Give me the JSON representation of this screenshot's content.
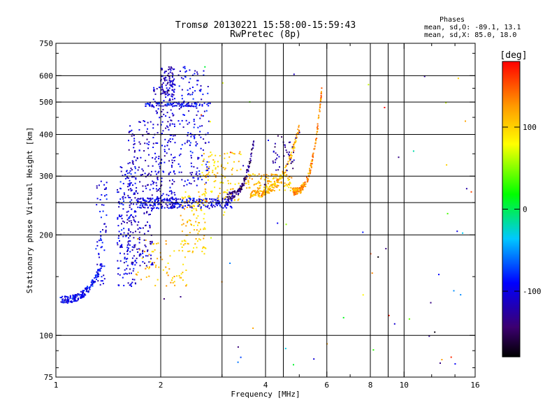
{
  "header": {
    "title": "Tromsø 20130221 15:58:00-15:59:43",
    "subtitle": "RwPretec (8p)",
    "phase_heading": "Phases",
    "phase_o": "mean, sd,O: -89.1, 13.1",
    "phase_x": "mean, sd,X:  85.0, 18.0"
  },
  "chart_data": {
    "type": "scatter",
    "xlabel": "Frequency [MHz]",
    "ylabel": "Stationary phase Virtual Height [km]",
    "x_scale": "log",
    "y_scale": "log",
    "xlim": [
      1,
      16
    ],
    "ylim": [
      75,
      750
    ],
    "x_ticks": [
      1,
      2,
      4,
      6,
      8,
      10,
      16
    ],
    "x_tick_labels": [
      "1",
      "2",
      "4",
      "6",
      "8",
      "10",
      "16"
    ],
    "x_grid": [
      2,
      3,
      4,
      4.5,
      6,
      8,
      9,
      10
    ],
    "y_ticks": [
      75,
      100,
      200,
      300,
      400,
      500,
      600,
      750
    ],
    "y_tick_labels": [
      "75",
      "100",
      "200",
      "300",
      "400",
      "500",
      "600",
      "750"
    ],
    "y_grid": [
      100,
      200,
      250,
      300,
      400,
      500,
      600
    ],
    "grid": true,
    "colorbar": {
      "label": "[deg]",
      "range": [
        -180,
        180
      ],
      "ticks": [
        100,
        0,
        -100
      ],
      "tick_labels": [
        "100",
        "0",
        "-100"
      ]
    },
    "traces": [
      {
        "fmin": 1.03,
        "fmax": 1.35,
        "hmin": 128,
        "hmax": 162,
        "hshape": "rise",
        "phase": -95,
        "count": 180
      },
      {
        "fmin": 1.3,
        "fmax": 1.4,
        "hmin": 140,
        "hmax": 290,
        "hshape": "rand",
        "phase": -100,
        "count": 60
      },
      {
        "fmin": 1.5,
        "fmax": 1.7,
        "hmin": 140,
        "hmax": 320,
        "hshape": "rand",
        "phase": -100,
        "count": 160
      },
      {
        "fmin": 1.6,
        "fmax": 1.9,
        "hmin": 160,
        "hmax": 440,
        "hshape": "rand",
        "phase": -110,
        "count": 220
      },
      {
        "fmin": 1.9,
        "fmax": 2.2,
        "hmin": 240,
        "hmax": 560,
        "hshape": "rand",
        "phase": -110,
        "count": 200
      },
      {
        "fmin": 2.0,
        "fmax": 2.2,
        "hmin": 520,
        "hmax": 640,
        "hshape": "rand",
        "phase": -115,
        "count": 90
      },
      {
        "fmin": 2.25,
        "fmax": 2.75,
        "hmin": 280,
        "hmax": 640,
        "hshape": "rand",
        "phase": -100,
        "count": 170
      },
      {
        "fmin": 1.7,
        "fmax": 3.2,
        "hmin": 240,
        "hmax": 258,
        "hshape": "flat",
        "phase": -100,
        "count": 260
      },
      {
        "fmin": 1.8,
        "fmax": 2.8,
        "hmin": 485,
        "hmax": 500,
        "hshape": "flat",
        "phase": -95,
        "count": 90
      },
      {
        "fmin": 2.3,
        "fmax": 2.7,
        "hmin": 175,
        "hmax": 270,
        "hshape": "rand",
        "phase": 105,
        "count": 100
      },
      {
        "fmin": 1.7,
        "fmax": 2.4,
        "hmin": 140,
        "hmax": 195,
        "hshape": "rand",
        "phase": 110,
        "count": 70
      },
      {
        "fmin": 2.6,
        "fmax": 3.4,
        "hmin": 250,
        "hmax": 360,
        "hshape": "rand",
        "phase": 100,
        "count": 110
      },
      {
        "fmin": 3.1,
        "fmax": 3.7,
        "hmin": 262,
        "hmax": 380,
        "hshape": "rise",
        "phase": -140,
        "count": 110
      },
      {
        "fmin": 3.6,
        "fmax": 5.0,
        "hmin": 265,
        "hmax": 420,
        "hshape": "rise",
        "phase": 115,
        "count": 170
      },
      {
        "fmin": 4.2,
        "fmax": 4.9,
        "hmin": 310,
        "hmax": 400,
        "hshape": "rand",
        "phase": -130,
        "count": 40
      },
      {
        "fmin": 4.8,
        "fmax": 5.8,
        "hmin": 270,
        "hmax": 545,
        "hshape": "rise",
        "phase": 130,
        "count": 180
      },
      {
        "fmin": 3.5,
        "fmax": 4.8,
        "hmin": 270,
        "hmax": 305,
        "hshape": "flat",
        "phase": 110,
        "count": 120
      },
      {
        "fmin": 2.0,
        "fmax": 16.0,
        "hmin": 80,
        "hmax": 650,
        "hshape": "rand",
        "phase": 0,
        "count": 70
      }
    ]
  }
}
